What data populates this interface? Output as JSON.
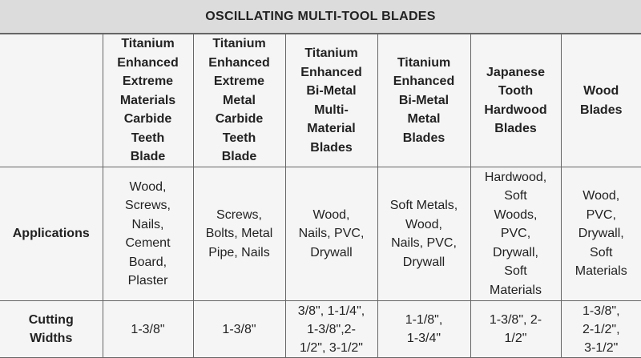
{
  "title": "OSCILLATING MULTI-TOOL BLADES",
  "columns": [
    "",
    "Titanium\nEnhanced\nExtreme\nMaterials\nCarbide\nTeeth\nBlade",
    "Titanium\nEnhanced\nExtreme\nMetal\nCarbide\nTeeth\nBlade",
    "Titanium\nEnhanced\nBi-Metal\nMulti-\nMaterial\nBlades",
    "Titanium\nEnhanced\nBi-Metal\nMetal\nBlades",
    "Japanese\nTooth\nHardwood\nBlades",
    "Wood\nBlades"
  ],
  "rows": [
    {
      "label": "Applications",
      "cells": [
        "Wood,\nScrews,\nNails,\nCement\nBoard,\nPlaster",
        "Screws,\nBolts, Metal\nPipe, Nails",
        "Wood,\nNails, PVC,\nDrywall",
        "Soft Metals,\nWood,\nNails, PVC,\nDrywall",
        "Hardwood,\nSoft\nWoods,\nPVC,\nDrywall,\nSoft\nMaterials",
        "Wood,\nPVC,\nDrywall,\nSoft\nMaterials"
      ]
    },
    {
      "label": "Cutting\nWidths",
      "cells": [
        "1-3/8\"",
        "1-3/8\"",
        "3/8\", 1-1/4\",\n1-3/8\",2-\n1/2\", 3-1/2\"",
        "1-1/8\",\n1-3/4\"",
        "1-3/8\", 2-\n1/2\"",
        "1-3/8\",\n2-1/2\",\n3-1/2\""
      ]
    }
  ]
}
